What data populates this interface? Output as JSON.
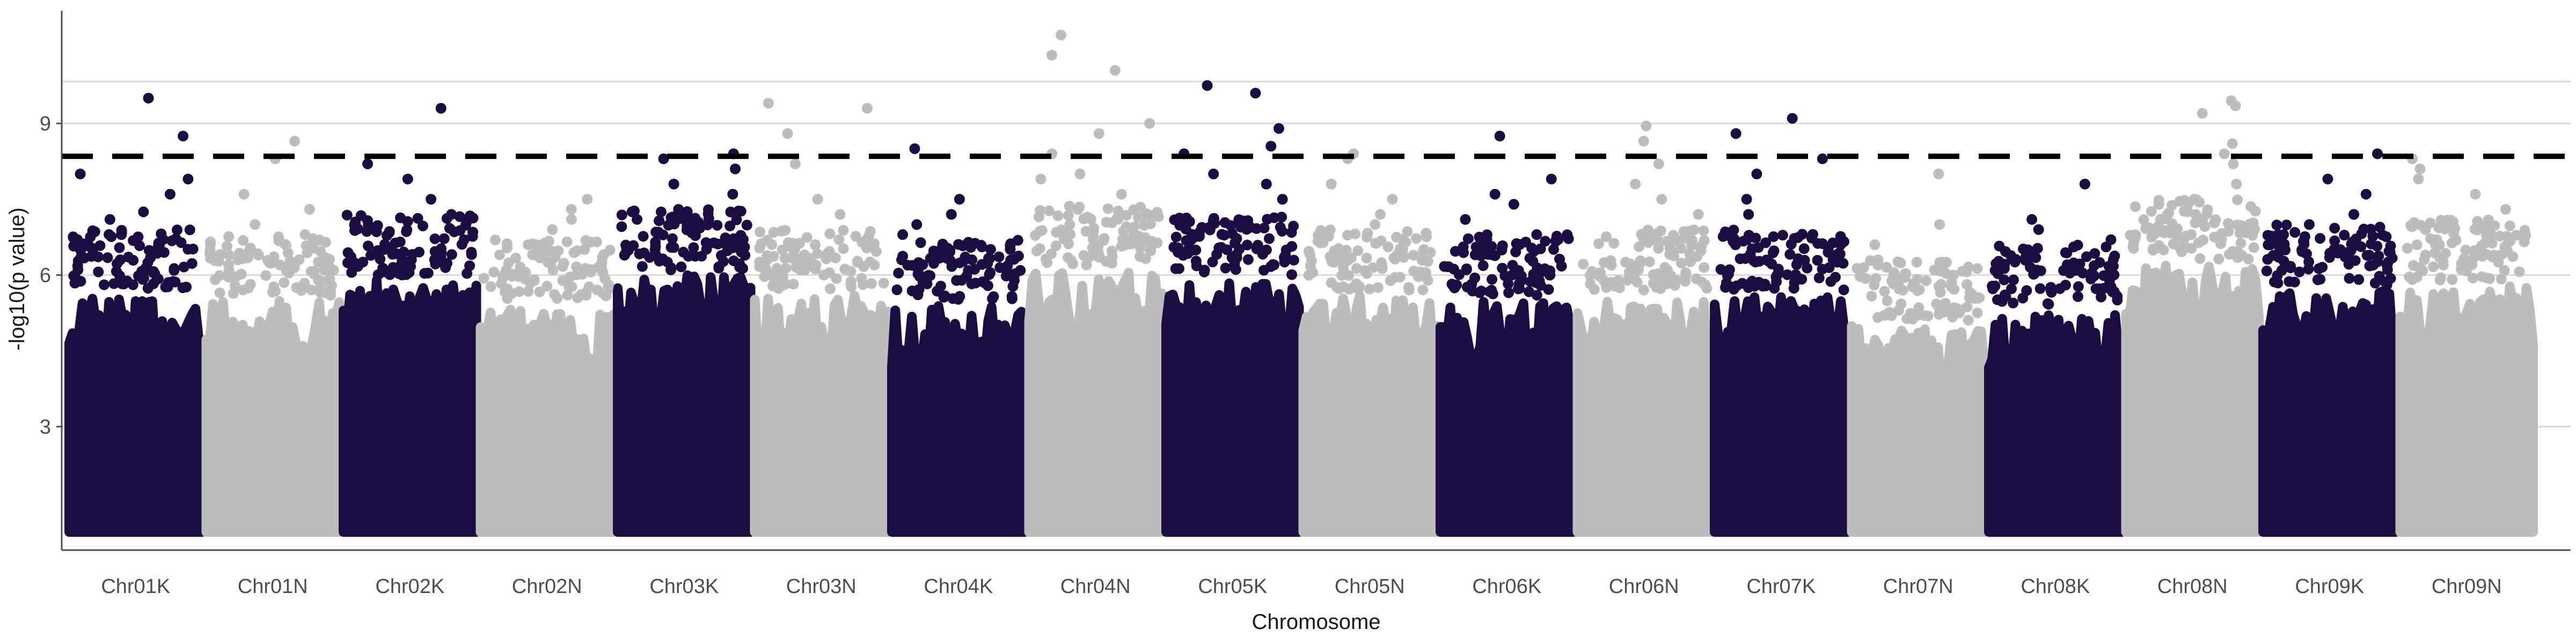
{
  "chart_data": {
    "type": "scatter",
    "title": "",
    "xlabel": "Chromosome",
    "ylabel": "-log10(p value)",
    "ylim": [
      0,
      11
    ],
    "y_ticks": [
      3,
      6,
      9
    ],
    "threshold": 8.35,
    "threshold_style": "dashed",
    "grid": "horizontal major lines only",
    "legend": "none",
    "colors": {
      "dark": "#1b0d42",
      "light": "#bdbdbd",
      "threshold": "#000000",
      "grid": "#d9d9d9"
    },
    "categories": [
      "Chr01K",
      "Chr01N",
      "Chr02K",
      "Chr02N",
      "Chr03K",
      "Chr03N",
      "Chr04K",
      "Chr04N",
      "Chr05K",
      "Chr05N",
      "Chr06K",
      "Chr06N",
      "Chr07K",
      "Chr07N",
      "Chr08K",
      "Chr08N",
      "Chr09K",
      "Chr09N"
    ],
    "series": [
      {
        "category": "Chr01K",
        "color": "dark",
        "baseline_max": 5.9,
        "top_points": [
          9.5,
          8.75,
          8.0,
          7.9,
          7.6,
          7.25,
          7.1
        ]
      },
      {
        "category": "Chr01N",
        "color": "light",
        "baseline_max": 5.8,
        "top_points": [
          8.65,
          8.3,
          7.6,
          7.3,
          7.0,
          6.8
        ]
      },
      {
        "category": "Chr02K",
        "color": "dark",
        "baseline_max": 6.2,
        "top_points": [
          9.3,
          8.2,
          7.9,
          7.5,
          7.2,
          7.05
        ]
      },
      {
        "category": "Chr02N",
        "color": "light",
        "baseline_max": 5.7,
        "top_points": [
          7.5,
          7.3,
          7.1,
          6.9,
          6.6
        ]
      },
      {
        "category": "Chr03K",
        "color": "dark",
        "baseline_max": 6.3,
        "top_points": [
          8.4,
          8.3,
          8.1,
          7.8,
          7.6,
          7.3
        ]
      },
      {
        "category": "Chr03N",
        "color": "light",
        "baseline_max": 5.9,
        "top_points": [
          9.4,
          9.3,
          8.8,
          8.2,
          7.5,
          7.2
        ]
      },
      {
        "category": "Chr04K",
        "color": "dark",
        "baseline_max": 5.7,
        "top_points": [
          8.5,
          7.5,
          7.2,
          7.0,
          6.8
        ]
      },
      {
        "category": "Chr04N",
        "color": "light",
        "baseline_max": 6.4,
        "top_points": [
          10.75,
          10.35,
          10.05,
          9.0,
          8.8,
          8.4,
          8.0,
          7.9,
          7.6
        ]
      },
      {
        "category": "Chr05K",
        "color": "dark",
        "baseline_max": 6.2,
        "top_points": [
          9.75,
          9.6,
          8.9,
          8.55,
          8.4,
          8.0,
          7.8,
          7.5
        ]
      },
      {
        "category": "Chr05N",
        "color": "light",
        "baseline_max": 5.9,
        "top_points": [
          8.4,
          8.3,
          7.8,
          7.5,
          7.2,
          7.0
        ]
      },
      {
        "category": "Chr06K",
        "color": "dark",
        "baseline_max": 5.8,
        "top_points": [
          8.75,
          7.9,
          7.6,
          7.4,
          7.1,
          6.8
        ]
      },
      {
        "category": "Chr06N",
        "color": "light",
        "baseline_max": 5.9,
        "top_points": [
          8.95,
          8.65,
          8.2,
          7.8,
          7.5,
          7.2
        ]
      },
      {
        "category": "Chr07K",
        "color": "dark",
        "baseline_max": 5.9,
        "top_points": [
          9.1,
          8.8,
          8.3,
          8.0,
          7.5,
          7.2
        ]
      },
      {
        "category": "Chr07N",
        "color": "light",
        "baseline_max": 5.3,
        "top_points": [
          8.0,
          7.0,
          6.6,
          6.3,
          6.1
        ]
      },
      {
        "category": "Chr08K",
        "color": "dark",
        "baseline_max": 5.6,
        "top_points": [
          7.8,
          7.1,
          6.9,
          6.7,
          6.5
        ]
      },
      {
        "category": "Chr08N",
        "color": "light",
        "baseline_max": 6.5,
        "top_points": [
          9.45,
          9.35,
          9.2,
          8.6,
          8.4,
          8.2,
          7.8,
          7.5
        ]
      },
      {
        "category": "Chr09K",
        "color": "dark",
        "baseline_max": 6.0,
        "top_points": [
          8.4,
          7.9,
          7.6,
          7.2,
          7.0,
          6.8
        ]
      },
      {
        "category": "Chr09N",
        "color": "light",
        "baseline_max": 6.1,
        "top_points": [
          8.3,
          8.1,
          7.9,
          7.6,
          7.3,
          7.0
        ]
      }
    ]
  }
}
